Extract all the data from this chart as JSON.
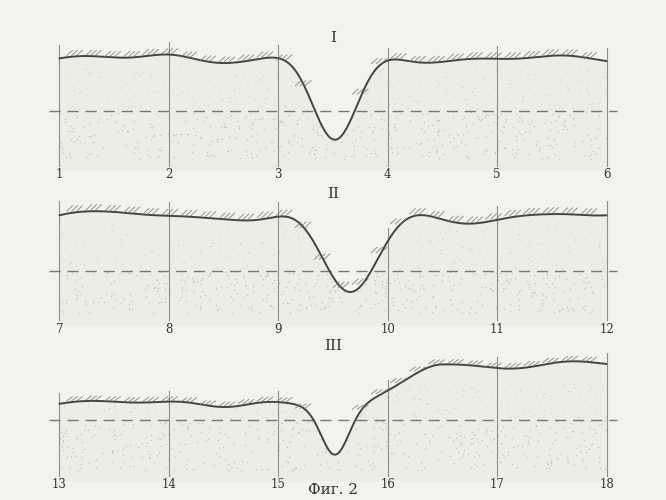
{
  "background_color": "#f2f2ee",
  "title_I": "I",
  "title_II": "II",
  "title_III": "III",
  "caption": "Фиг. 2",
  "labels_I": [
    "1",
    "2",
    "3",
    "4",
    "5",
    "6"
  ],
  "labels_II": [
    "7",
    "8",
    "9",
    "10",
    "11",
    "12"
  ],
  "labels_III": [
    "13",
    "14",
    "15",
    "16",
    "17",
    "18"
  ],
  "line_color": "#444444",
  "dash_color": "#888888",
  "hatch_color": "#666666",
  "fill_color": "#e8e8e0",
  "dot_color": "#aaaaaa"
}
